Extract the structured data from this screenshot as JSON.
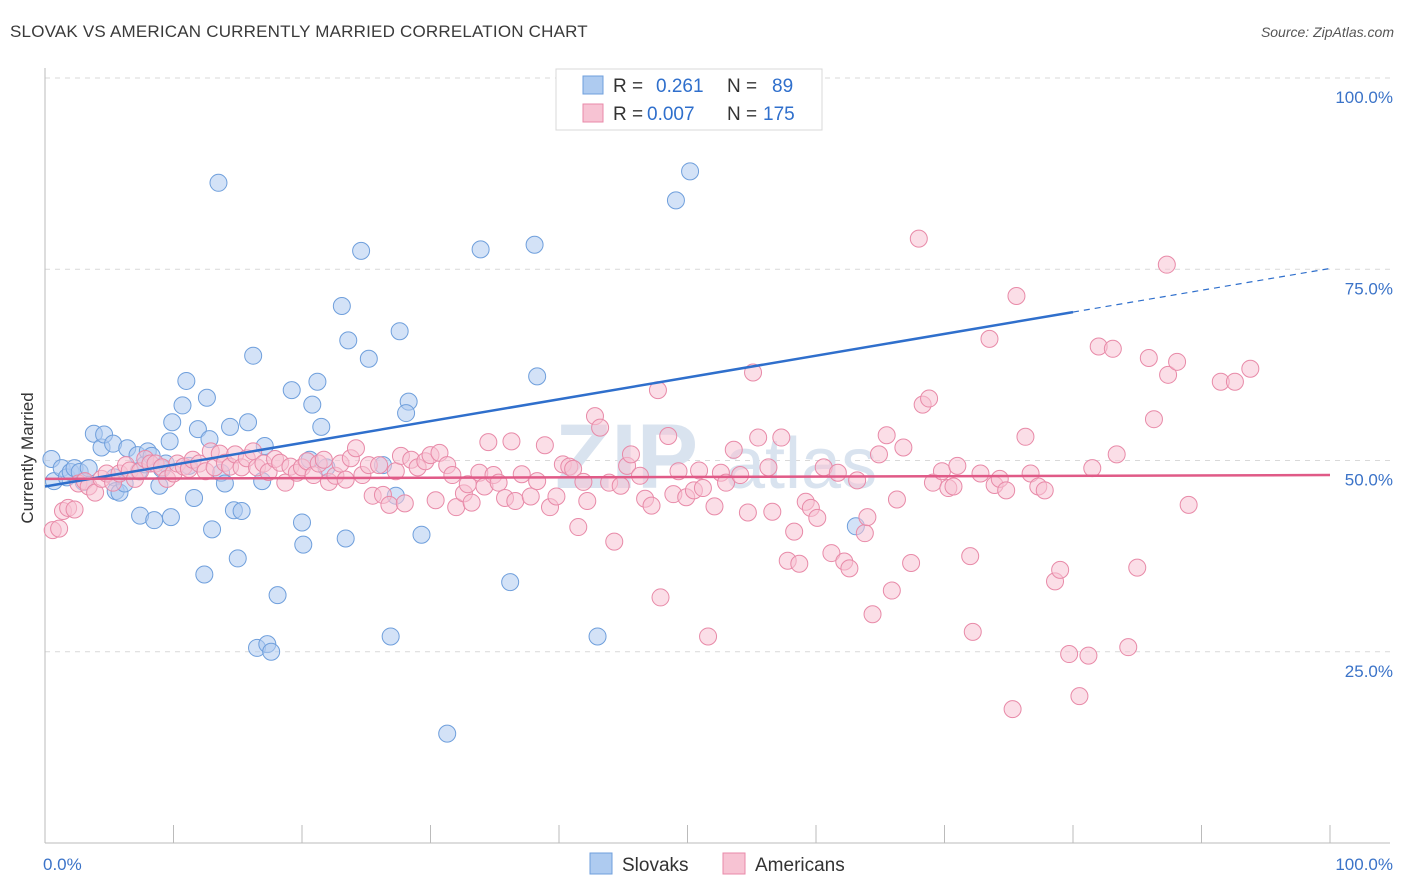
{
  "title": "SLOVAK VS AMERICAN CURRENTLY MARRIED CORRELATION CHART",
  "source": "Source: ZipAtlas.com",
  "watermark": {
    "zip": "ZIP",
    "atlas": "atlas"
  },
  "legend": {
    "rows": [
      {
        "r_label": "R =",
        "r_value": "0.261",
        "n_label": "N =",
        "n_value": "89",
        "color": "#aecbf0",
        "stroke": "#6f9fdc"
      },
      {
        "r_label": "R =",
        "r_value": "0.007",
        "n_label": "N =",
        "n_value": "175",
        "color": "#f7c3d3",
        "stroke": "#e88aa8"
      }
    ]
  },
  "bottom_legend": [
    {
      "label": "Slovaks",
      "color": "#aecbf0",
      "stroke": "#6f9fdc"
    },
    {
      "label": "Americans",
      "color": "#f7c3d3",
      "stroke": "#e88aa8"
    }
  ],
  "chart_data": {
    "type": "scatter",
    "title": "SLOVAK VS AMERICAN CURRENTLY MARRIED CORRELATION CHART",
    "xlabel": "",
    "ylabel": "Currently Married",
    "xlim": [
      0,
      100
    ],
    "ylim": [
      0,
      100
    ],
    "x_tick_labels": [
      "0.0%",
      "100.0%"
    ],
    "y_ticks": [
      25,
      50,
      75,
      100
    ],
    "y_tick_labels": [
      "25.0%",
      "50.0%",
      "75.0%",
      "100.0%"
    ],
    "grid": true,
    "legend_position": "top-center",
    "series": [
      {
        "name": "Slovaks",
        "color": "#6f9fdc",
        "fill": "#aecbf0",
        "trend": {
          "x0": 0,
          "y0": 46.6,
          "x1": 80,
          "y1": 69.4,
          "dash_to": 100,
          "dash_y": 75.1
        },
        "points": [
          [
            0.5,
            50.2
          ],
          [
            0.7,
            47.3
          ],
          [
            1.3,
            49.0
          ],
          [
            1.7,
            47.8
          ],
          [
            2.0,
            48.5
          ],
          [
            2.3,
            49.0
          ],
          [
            2.7,
            48.5
          ],
          [
            3.0,
            47.2
          ],
          [
            3.4,
            49.0
          ],
          [
            3.8,
            53.5
          ],
          [
            4.4,
            51.7
          ],
          [
            4.6,
            53.4
          ],
          [
            5.3,
            52.2
          ],
          [
            5.4,
            47.8
          ],
          [
            5.5,
            46.0
          ],
          [
            5.8,
            45.8
          ],
          [
            6.2,
            47.0
          ],
          [
            6.4,
            51.6
          ],
          [
            7.2,
            50.7
          ],
          [
            7.3,
            48.6
          ],
          [
            7.4,
            42.8
          ],
          [
            7.8,
            49.5
          ],
          [
            8.0,
            51.2
          ],
          [
            8.3,
            50.6
          ],
          [
            8.5,
            42.2
          ],
          [
            8.9,
            46.7
          ],
          [
            9.1,
            48.9
          ],
          [
            9.4,
            49.6
          ],
          [
            9.7,
            52.5
          ],
          [
            9.8,
            42.6
          ],
          [
            9.9,
            55.0
          ],
          [
            10.7,
            57.2
          ],
          [
            11.0,
            60.4
          ],
          [
            11.2,
            49.3
          ],
          [
            11.6,
            45.1
          ],
          [
            11.9,
            54.1
          ],
          [
            12.4,
            35.1
          ],
          [
            12.6,
            58.2
          ],
          [
            12.8,
            52.8
          ],
          [
            13.0,
            41.0
          ],
          [
            13.5,
            86.3
          ],
          [
            13.7,
            48.4
          ],
          [
            14.0,
            47.0
          ],
          [
            14.4,
            54.4
          ],
          [
            14.7,
            43.5
          ],
          [
            15.0,
            37.2
          ],
          [
            15.3,
            43.4
          ],
          [
            15.8,
            55.0
          ],
          [
            16.2,
            63.7
          ],
          [
            16.5,
            25.5
          ],
          [
            16.9,
            47.3
          ],
          [
            17.1,
            51.9
          ],
          [
            17.3,
            26.0
          ],
          [
            17.6,
            25.0
          ],
          [
            18.1,
            32.4
          ],
          [
            19.2,
            59.2
          ],
          [
            20.0,
            41.9
          ],
          [
            20.1,
            39.0
          ],
          [
            20.6,
            50.1
          ],
          [
            20.8,
            57.3
          ],
          [
            21.2,
            60.3
          ],
          [
            21.5,
            54.4
          ],
          [
            21.9,
            49.1
          ],
          [
            23.1,
            70.2
          ],
          [
            23.4,
            39.8
          ],
          [
            23.6,
            65.7
          ],
          [
            24.6,
            77.4
          ],
          [
            25.2,
            63.3
          ],
          [
            26.3,
            49.4
          ],
          [
            26.9,
            27.0
          ],
          [
            27.3,
            45.4
          ],
          [
            27.6,
            66.9
          ],
          [
            28.3,
            57.7
          ],
          [
            28.1,
            56.2
          ],
          [
            29.3,
            40.3
          ],
          [
            31.3,
            14.3
          ],
          [
            33.9,
            77.6
          ],
          [
            36.2,
            34.1
          ],
          [
            38.1,
            78.2
          ],
          [
            38.3,
            61.0
          ],
          [
            43.0,
            27.0
          ],
          [
            49.1,
            84.0
          ],
          [
            50.2,
            87.8
          ],
          [
            51.6,
            99.8
          ],
          [
            53.9,
            99.4
          ],
          [
            63.1,
            41.4
          ]
        ]
      },
      {
        "name": "Americans",
        "color": "#e88aa8",
        "fill": "#f7c3d3",
        "trend": {
          "x0": 0,
          "y0": 47.6,
          "x1": 100,
          "y1": 48.1
        },
        "points": [
          [
            0.6,
            40.9
          ],
          [
            1.1,
            41.1
          ],
          [
            1.4,
            43.4
          ],
          [
            1.8,
            43.8
          ],
          [
            2.3,
            43.6
          ],
          [
            2.6,
            47.0
          ],
          [
            3.1,
            47.3
          ],
          [
            3.4,
            46.6
          ],
          [
            3.9,
            45.8
          ],
          [
            4.4,
            47.6
          ],
          [
            4.8,
            48.3
          ],
          [
            5.3,
            47.1
          ],
          [
            5.8,
            48.3
          ],
          [
            6.3,
            49.4
          ],
          [
            6.6,
            48.7
          ],
          [
            7.0,
            47.6
          ],
          [
            7.4,
            48.6
          ],
          [
            7.8,
            50.2
          ],
          [
            8.2,
            49.6
          ],
          [
            8.6,
            49.6
          ],
          [
            9.1,
            49.1
          ],
          [
            9.5,
            47.6
          ],
          [
            10.0,
            48.3
          ],
          [
            10.3,
            49.6
          ],
          [
            10.8,
            49.2
          ],
          [
            11.2,
            48.9
          ],
          [
            11.5,
            50.1
          ],
          [
            12.0,
            49.6
          ],
          [
            12.5,
            48.6
          ],
          [
            12.9,
            51.2
          ],
          [
            13.2,
            49.1
          ],
          [
            13.6,
            50.9
          ],
          [
            14.0,
            49.7
          ],
          [
            14.4,
            49.2
          ],
          [
            14.8,
            50.8
          ],
          [
            15.3,
            49.1
          ],
          [
            15.7,
            50.3
          ],
          [
            16.2,
            51.2
          ],
          [
            16.5,
            49.1
          ],
          [
            17.0,
            49.6
          ],
          [
            17.4,
            48.5
          ],
          [
            17.9,
            50.2
          ],
          [
            18.3,
            49.7
          ],
          [
            18.7,
            47.1
          ],
          [
            19.1,
            49.2
          ],
          [
            19.6,
            48.4
          ],
          [
            20.0,
            49.1
          ],
          [
            20.4,
            49.9
          ],
          [
            20.9,
            48.1
          ],
          [
            21.3,
            49.6
          ],
          [
            21.7,
            50.1
          ],
          [
            22.1,
            47.2
          ],
          [
            22.6,
            48.0
          ],
          [
            23.0,
            49.6
          ],
          [
            23.4,
            47.5
          ],
          [
            23.8,
            50.3
          ],
          [
            24.2,
            51.6
          ],
          [
            24.7,
            48.1
          ],
          [
            25.2,
            49.4
          ],
          [
            25.5,
            45.4
          ],
          [
            26.0,
            49.4
          ],
          [
            26.3,
            45.5
          ],
          [
            26.8,
            44.2
          ],
          [
            27.3,
            48.6
          ],
          [
            27.7,
            50.6
          ],
          [
            28.0,
            44.4
          ],
          [
            28.5,
            50.1
          ],
          [
            29.0,
            49.1
          ],
          [
            29.6,
            49.9
          ],
          [
            30.0,
            50.7
          ],
          [
            30.4,
            44.8
          ],
          [
            30.7,
            51.0
          ],
          [
            31.3,
            49.4
          ],
          [
            31.7,
            48.1
          ],
          [
            32.0,
            43.9
          ],
          [
            32.6,
            45.7
          ],
          [
            32.9,
            46.9
          ],
          [
            33.2,
            44.5
          ],
          [
            33.8,
            48.4
          ],
          [
            34.2,
            46.6
          ],
          [
            34.5,
            52.4
          ],
          [
            34.9,
            48.1
          ],
          [
            35.3,
            47.1
          ],
          [
            35.8,
            45.1
          ],
          [
            36.3,
            52.5
          ],
          [
            36.6,
            44.7
          ],
          [
            37.1,
            48.2
          ],
          [
            37.8,
            45.3
          ],
          [
            38.3,
            47.3
          ],
          [
            38.9,
            52.0
          ],
          [
            39.3,
            43.9
          ],
          [
            39.8,
            45.3
          ],
          [
            40.3,
            49.5
          ],
          [
            40.8,
            49.2
          ],
          [
            41.1,
            48.9
          ],
          [
            41.5,
            41.3
          ],
          [
            41.9,
            47.2
          ],
          [
            42.2,
            44.7
          ],
          [
            42.8,
            55.8
          ],
          [
            43.2,
            54.3
          ],
          [
            43.9,
            47.1
          ],
          [
            44.3,
            39.4
          ],
          [
            44.8,
            46.7
          ],
          [
            45.3,
            49.3
          ],
          [
            45.6,
            50.8
          ],
          [
            46.3,
            48.0
          ],
          [
            46.7,
            45.0
          ],
          [
            47.2,
            44.1
          ],
          [
            47.7,
            59.2
          ],
          [
            47.9,
            32.1
          ],
          [
            48.5,
            53.2
          ],
          [
            48.9,
            45.6
          ],
          [
            49.3,
            48.6
          ],
          [
            49.9,
            45.2
          ],
          [
            50.5,
            46.1
          ],
          [
            50.9,
            48.7
          ],
          [
            51.2,
            46.4
          ],
          [
            51.6,
            27.0
          ],
          [
            52.1,
            44.0
          ],
          [
            52.6,
            48.4
          ],
          [
            53.0,
            47.1
          ],
          [
            53.6,
            51.4
          ],
          [
            54.1,
            48.1
          ],
          [
            54.7,
            43.2
          ],
          [
            55.1,
            61.5
          ],
          [
            55.5,
            53.0
          ],
          [
            56.3,
            49.1
          ],
          [
            56.6,
            43.3
          ],
          [
            57.3,
            53.0
          ],
          [
            57.8,
            36.9
          ],
          [
            58.3,
            40.7
          ],
          [
            58.7,
            36.5
          ],
          [
            59.2,
            44.6
          ],
          [
            59.6,
            43.8
          ],
          [
            60.1,
            42.5
          ],
          [
            60.6,
            49.1
          ],
          [
            61.2,
            37.9
          ],
          [
            61.7,
            48.4
          ],
          [
            62.2,
            36.8
          ],
          [
            62.6,
            35.9
          ],
          [
            63.2,
            47.4
          ],
          [
            63.8,
            40.5
          ],
          [
            64.0,
            42.6
          ],
          [
            64.4,
            29.9
          ],
          [
            64.9,
            50.8
          ],
          [
            65.5,
            53.3
          ],
          [
            65.9,
            33.0
          ],
          [
            66.3,
            44.9
          ],
          [
            66.8,
            51.7
          ],
          [
            67.4,
            36.6
          ],
          [
            68.0,
            79.0
          ],
          [
            68.3,
            57.3
          ],
          [
            68.8,
            58.1
          ],
          [
            69.1,
            47.1
          ],
          [
            69.8,
            48.6
          ],
          [
            70.3,
            46.4
          ],
          [
            70.7,
            46.6
          ],
          [
            71.0,
            49.3
          ],
          [
            72.0,
            37.5
          ],
          [
            72.2,
            27.6
          ],
          [
            72.8,
            48.3
          ],
          [
            73.5,
            65.9
          ],
          [
            73.9,
            46.8
          ],
          [
            74.3,
            47.6
          ],
          [
            74.8,
            46.1
          ],
          [
            75.3,
            17.5
          ],
          [
            75.6,
            71.5
          ],
          [
            76.3,
            53.1
          ],
          [
            76.7,
            48.3
          ],
          [
            77.3,
            46.6
          ],
          [
            77.8,
            46.1
          ],
          [
            78.6,
            34.2
          ],
          [
            79.0,
            35.7
          ],
          [
            79.7,
            24.7
          ],
          [
            80.5,
            19.2
          ],
          [
            81.2,
            24.5
          ],
          [
            81.5,
            49.0
          ],
          [
            82.0,
            64.9
          ],
          [
            83.1,
            64.6
          ],
          [
            83.4,
            50.8
          ],
          [
            84.3,
            25.6
          ],
          [
            85.0,
            36.0
          ],
          [
            85.9,
            63.4
          ],
          [
            86.3,
            55.4
          ],
          [
            87.3,
            75.6
          ],
          [
            87.4,
            61.2
          ],
          [
            88.1,
            62.9
          ],
          [
            89.0,
            44.2
          ],
          [
            91.5,
            60.3
          ],
          [
            92.6,
            60.3
          ],
          [
            93.8,
            62.0
          ]
        ]
      }
    ]
  }
}
